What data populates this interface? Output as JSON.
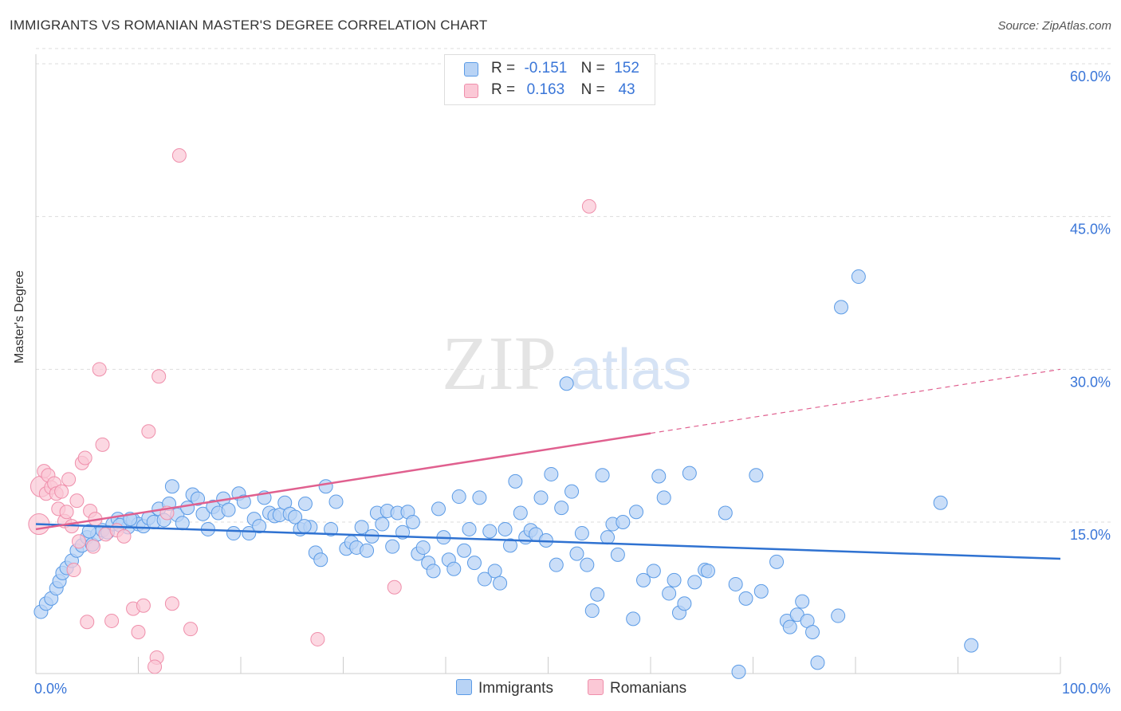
{
  "title": "IMMIGRANTS VS ROMANIAN MASTER'S DEGREE CORRELATION CHART",
  "source": "Source: ZipAtlas.com",
  "watermark": {
    "zip": "ZIP",
    "atlas": "atlas"
  },
  "legend": {
    "rows": [
      {
        "r_label": "R =",
        "r_value": "-0.151",
        "n_label": "N =",
        "n_value": "152"
      },
      {
        "r_label": "R =",
        "r_value": "0.163",
        "n_label": "N =",
        "n_value": "43"
      }
    ],
    "bottom": [
      "Immigrants",
      "Romanians"
    ]
  },
  "colors": {
    "immigrants_fill": "#b8d3f5",
    "immigrants_stroke": "#5b9be6",
    "immigrants_line": "#2f72d1",
    "romanians_fill": "#fbc8d6",
    "romanians_stroke": "#ef8fab",
    "romanians_line": "#e0608f",
    "tick_label": "#3a76d8",
    "grid": "#dddddd"
  },
  "chart_data": {
    "type": "scatter",
    "title": "IMMIGRANTS VS ROMANIAN MASTER'S DEGREE CORRELATION CHART",
    "xlabel": "",
    "ylabel": "Master's Degree",
    "xlim": [
      0,
      100
    ],
    "ylim": [
      0,
      62
    ],
    "x_tick_labels": [
      "0.0%",
      "100.0%"
    ],
    "y_ticks": [
      15,
      30,
      45,
      60
    ],
    "y_tick_labels": [
      "15.0%",
      "30.0%",
      "45.0%",
      "60.0%"
    ],
    "series": [
      {
        "name": "Immigrants",
        "R": -0.151,
        "N": 152,
        "trend": {
          "x0": 0,
          "y0": 14.8,
          "x1": 100,
          "y1": 11.4
        },
        "points": [
          [
            0.5,
            6.2
          ],
          [
            1.0,
            7.0
          ],
          [
            1.5,
            7.5
          ],
          [
            2.0,
            8.5
          ],
          [
            2.3,
            9.2
          ],
          [
            2.6,
            10.0
          ],
          [
            3.0,
            10.5
          ],
          [
            3.5,
            11.2
          ],
          [
            4.0,
            12.2
          ],
          [
            4.5,
            12.7
          ],
          [
            5.0,
            13.5
          ],
          [
            5.5,
            12.8
          ],
          [
            6.0,
            13.8
          ],
          [
            6.5,
            14.2
          ],
          [
            7.0,
            14.0
          ],
          [
            7.5,
            14.8
          ],
          [
            8.0,
            15.3
          ],
          [
            8.5,
            15.0
          ],
          [
            9.0,
            14.5
          ],
          [
            9.5,
            15.2
          ],
          [
            10.0,
            14.8
          ],
          [
            10.5,
            14.6
          ],
          [
            11.0,
            15.4
          ],
          [
            11.5,
            15.0
          ],
          [
            12.0,
            16.3
          ],
          [
            12.5,
            15.2
          ],
          [
            13.0,
            16.8
          ],
          [
            13.3,
            18.5
          ],
          [
            13.8,
            15.7
          ],
          [
            14.3,
            14.9
          ],
          [
            14.8,
            16.4
          ],
          [
            15.3,
            17.7
          ],
          [
            15.8,
            17.3
          ],
          [
            16.3,
            15.8
          ],
          [
            16.8,
            14.3
          ],
          [
            17.3,
            16.5
          ],
          [
            17.8,
            15.9
          ],
          [
            18.3,
            17.3
          ],
          [
            18.8,
            16.2
          ],
          [
            19.3,
            13.9
          ],
          [
            19.8,
            17.8
          ],
          [
            20.3,
            17.0
          ],
          [
            20.8,
            13.9
          ],
          [
            21.3,
            15.3
          ],
          [
            21.8,
            14.6
          ],
          [
            22.3,
            17.4
          ],
          [
            22.8,
            15.9
          ],
          [
            23.3,
            15.6
          ],
          [
            23.8,
            15.7
          ],
          [
            24.3,
            16.9
          ],
          [
            24.8,
            15.8
          ],
          [
            25.3,
            15.5
          ],
          [
            25.8,
            14.3
          ],
          [
            26.3,
            16.8
          ],
          [
            26.8,
            14.5
          ],
          [
            27.3,
            12.0
          ],
          [
            27.8,
            11.3
          ],
          [
            28.3,
            18.5
          ],
          [
            28.8,
            14.3
          ],
          [
            29.3,
            17.0
          ],
          [
            30.3,
            12.4
          ],
          [
            30.8,
            13.0
          ],
          [
            31.3,
            12.5
          ],
          [
            31.8,
            14.5
          ],
          [
            32.3,
            12.2
          ],
          [
            32.8,
            13.6
          ],
          [
            33.3,
            15.9
          ],
          [
            33.8,
            14.8
          ],
          [
            34.3,
            16.1
          ],
          [
            34.8,
            12.6
          ],
          [
            35.3,
            15.9
          ],
          [
            35.8,
            14.0
          ],
          [
            36.3,
            16.0
          ],
          [
            36.8,
            15.0
          ],
          [
            37.3,
            11.9
          ],
          [
            37.8,
            12.5
          ],
          [
            38.3,
            11.0
          ],
          [
            38.8,
            10.2
          ],
          [
            39.3,
            16.3
          ],
          [
            39.8,
            13.5
          ],
          [
            40.3,
            11.3
          ],
          [
            40.8,
            10.4
          ],
          [
            41.3,
            17.5
          ],
          [
            41.8,
            12.2
          ],
          [
            42.3,
            14.3
          ],
          [
            42.8,
            11.0
          ],
          [
            43.3,
            17.4
          ],
          [
            43.8,
            9.4
          ],
          [
            44.3,
            14.1
          ],
          [
            44.8,
            10.2
          ],
          [
            45.3,
            9.0
          ],
          [
            45.8,
            14.3
          ],
          [
            46.3,
            12.7
          ],
          [
            46.8,
            19.0
          ],
          [
            47.3,
            15.9
          ],
          [
            47.8,
            13.5
          ],
          [
            48.3,
            14.2
          ],
          [
            48.8,
            13.8
          ],
          [
            49.3,
            17.4
          ],
          [
            49.8,
            13.2
          ],
          [
            50.3,
            19.7
          ],
          [
            50.8,
            10.8
          ],
          [
            51.3,
            16.4
          ],
          [
            51.8,
            28.6
          ],
          [
            52.3,
            18.0
          ],
          [
            52.8,
            11.9
          ],
          [
            53.3,
            13.9
          ],
          [
            53.8,
            10.8
          ],
          [
            54.3,
            6.3
          ],
          [
            54.8,
            7.9
          ],
          [
            55.3,
            19.6
          ],
          [
            55.8,
            13.5
          ],
          [
            56.3,
            14.8
          ],
          [
            56.8,
            11.8
          ],
          [
            57.3,
            15.0
          ],
          [
            58.3,
            5.5
          ],
          [
            58.6,
            16.0
          ],
          [
            59.3,
            9.3
          ],
          [
            60.3,
            10.2
          ],
          [
            60.8,
            19.5
          ],
          [
            61.3,
            17.4
          ],
          [
            61.8,
            8.0
          ],
          [
            62.3,
            9.3
          ],
          [
            62.8,
            6.1
          ],
          [
            63.3,
            7.0
          ],
          [
            63.8,
            19.8
          ],
          [
            64.3,
            9.1
          ],
          [
            65.3,
            10.3
          ],
          [
            65.6,
            10.2
          ],
          [
            67.3,
            15.9
          ],
          [
            68.3,
            8.9
          ],
          [
            68.6,
            0.3
          ],
          [
            69.3,
            7.5
          ],
          [
            70.3,
            19.6
          ],
          [
            70.8,
            8.2
          ],
          [
            72.3,
            11.1
          ],
          [
            73.3,
            5.3
          ],
          [
            73.6,
            4.7
          ],
          [
            74.3,
            5.9
          ],
          [
            74.8,
            7.2
          ],
          [
            75.3,
            5.3
          ],
          [
            75.8,
            4.2
          ],
          [
            76.3,
            1.2
          ],
          [
            78.3,
            5.8
          ],
          [
            78.6,
            36.1
          ],
          [
            80.3,
            39.1
          ],
          [
            88.3,
            16.9
          ],
          [
            91.3,
            2.9
          ],
          [
            5.2,
            14.1
          ],
          [
            8.2,
            14.7
          ],
          [
            9.2,
            15.3
          ],
          [
            26.2,
            14.6
          ]
        ]
      },
      {
        "name": "Romanians",
        "R": 0.163,
        "N": 43,
        "trend": {
          "x0": 0,
          "y0": 14.3,
          "x1": 100,
          "y1": 30.0,
          "solid_until_x": 60
        },
        "points": [
          [
            0.3,
            14.8
          ],
          [
            0.5,
            18.5
          ],
          [
            0.8,
            20.0
          ],
          [
            1.0,
            17.8
          ],
          [
            1.2,
            19.6
          ],
          [
            1.5,
            18.4
          ],
          [
            1.8,
            18.8
          ],
          [
            2.0,
            17.8
          ],
          [
            2.2,
            16.3
          ],
          [
            2.5,
            18.0
          ],
          [
            2.8,
            15.1
          ],
          [
            3.0,
            16.0
          ],
          [
            3.2,
            19.2
          ],
          [
            3.5,
            14.6
          ],
          [
            3.7,
            10.3
          ],
          [
            4.0,
            17.1
          ],
          [
            4.2,
            13.1
          ],
          [
            4.5,
            20.8
          ],
          [
            4.8,
            21.3
          ],
          [
            5.0,
            5.2
          ],
          [
            5.3,
            16.1
          ],
          [
            5.6,
            12.6
          ],
          [
            5.8,
            15.3
          ],
          [
            6.2,
            30.0
          ],
          [
            6.5,
            22.6
          ],
          [
            6.8,
            13.8
          ],
          [
            7.4,
            5.3
          ],
          [
            7.9,
            14.2
          ],
          [
            8.6,
            13.6
          ],
          [
            9.5,
            6.5
          ],
          [
            10.0,
            4.2
          ],
          [
            10.5,
            6.8
          ],
          [
            11.0,
            23.9
          ],
          [
            11.8,
            1.7
          ],
          [
            11.6,
            0.8
          ],
          [
            12.0,
            29.3
          ],
          [
            12.8,
            15.9
          ],
          [
            13.3,
            7.0
          ],
          [
            14.0,
            51.0
          ],
          [
            15.1,
            4.5
          ],
          [
            27.5,
            3.5
          ],
          [
            35.0,
            8.6
          ],
          [
            54.0,
            46.0
          ]
        ]
      }
    ]
  }
}
